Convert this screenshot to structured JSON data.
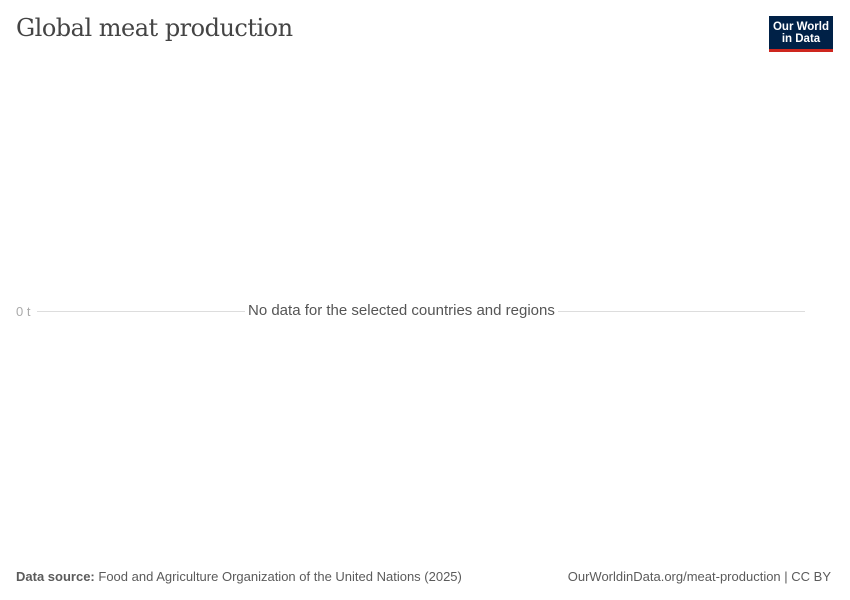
{
  "header": {
    "title": "Global meat production",
    "logo_text": "Our World in Data",
    "logo_colors": {
      "background": "#002147",
      "accent": "#ce261e"
    }
  },
  "chart_data": {
    "type": "line",
    "series": [],
    "ytick_labels": [
      "0 t"
    ],
    "message": "No data for the selected countries and regions",
    "grid": true
  },
  "footer": {
    "source_label": "Data source:",
    "source_text": "Food and Agriculture Organization of the United Nations (2025)",
    "url": "OurWorldinData.org/meat-production | CC BY"
  }
}
